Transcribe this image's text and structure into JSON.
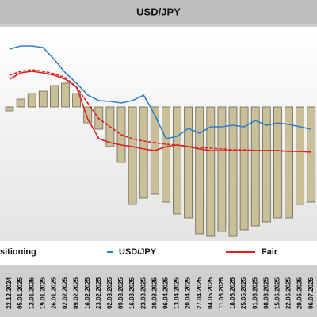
{
  "chart_data": {
    "type": "bar-line",
    "title": "USD/JPY",
    "categories": [
      "22.12.2024",
      "05.01.2025",
      "12.01.2025",
      "19.01.2025",
      "26.01.2025",
      "02.02.2025",
      "09.02.2025",
      "16.02.2025",
      "23.02.2025",
      "02.03.2025",
      "09.03.2025",
      "16.03.2025",
      "23.03.2025",
      "30.03.2025",
      "06.04.2025",
      "13.04.2025",
      "20.04.2025",
      "27.04.2025",
      "04.05.2025",
      "11.05.2025",
      "18.05.2025",
      "25.05.2025",
      "01.06.2025",
      "08.06.2025",
      "15.06.2025",
      "22.06.2025",
      "29.06.2025",
      "06.07.2025"
    ],
    "ylim": [
      -165,
      95
    ],
    "series": [
      {
        "name": "sitioning",
        "kind": "bar",
        "color": "#c9c09a",
        "values": [
          -5,
          10,
          17,
          20,
          27,
          30,
          17,
          -20,
          -28,
          -50,
          -70,
          -123,
          -115,
          -110,
          -120,
          -135,
          -140,
          -160,
          -163,
          -157,
          -163,
          -155,
          -150,
          -145,
          -140,
          -140,
          -123,
          -120
        ]
      },
      {
        "name": "USD/JPY",
        "kind": "line",
        "color": "#2f7fc8",
        "values": [
          73,
          77,
          77,
          75,
          60,
          43,
          30,
          15,
          8,
          7,
          5,
          8,
          15,
          -10,
          -40,
          -37,
          -27,
          -33,
          -25,
          -25,
          -23,
          -25,
          -17,
          -23,
          -20,
          -22,
          -25,
          -28
        ]
      },
      {
        "name": "Fair",
        "kind": "line",
        "color": "#e02020",
        "values": [
          35,
          43,
          45,
          43,
          40,
          35,
          25,
          -15,
          -40,
          -45,
          -48,
          -50,
          -53,
          -55,
          -50,
          -48,
          -50,
          -53,
          -55,
          -55,
          -55,
          -55,
          -55,
          -55,
          -55,
          -56,
          -56,
          -57
        ]
      },
      {
        "kind": "line",
        "dashed": true,
        "color": "#e02020",
        "values": [
          40,
          45,
          47,
          45,
          42,
          37,
          25,
          5,
          -15,
          -25,
          -35,
          -40,
          -43,
          -45,
          -47,
          -48,
          -50,
          -51,
          -52,
          -53,
          -54,
          -54,
          -55,
          -55,
          -55,
          -56,
          -56,
          -56
        ]
      }
    ]
  }
}
